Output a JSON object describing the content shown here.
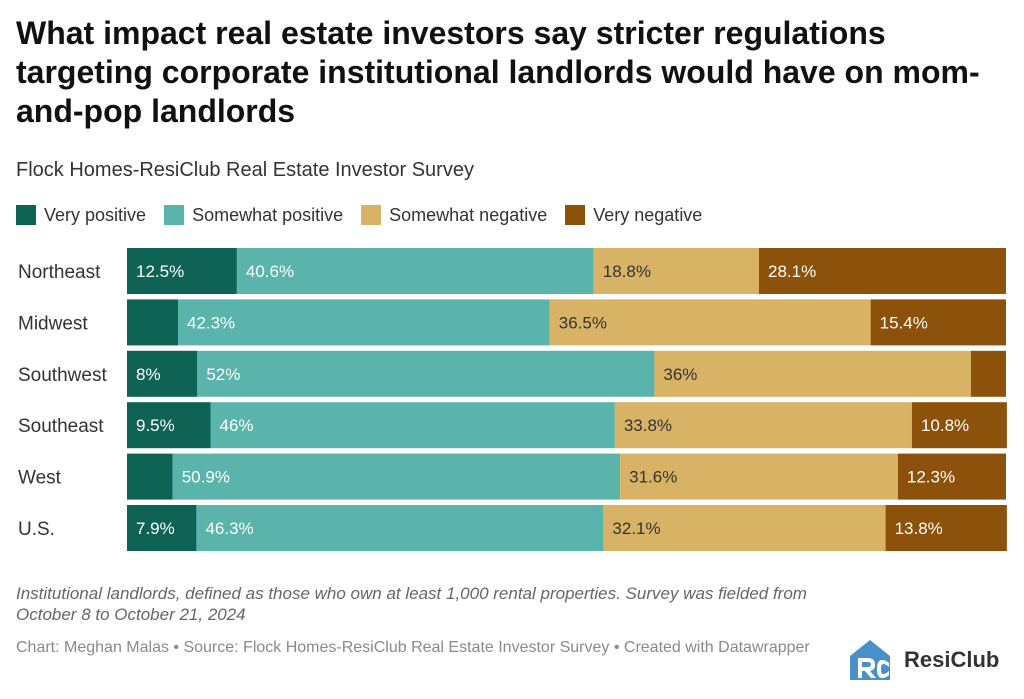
{
  "colors": {
    "very_positive": "#0f6355",
    "somewhat_positive": "#5ab4ac",
    "somewhat_negative": "#d8b365",
    "very_negative": "#8c510a"
  },
  "logo": {
    "text": "ResiClub",
    "icon": "resiclub-logo-icon"
  },
  "chart_data": {
    "type": "bar",
    "orientation": "horizontal",
    "stacked": true,
    "normalized": true,
    "title": "What impact real estate investors say stricter regulations targeting corporate institutional landlords would have on mom-and-pop landlords",
    "subtitle": "Flock Homes-ResiClub Real Estate Investor Survey",
    "legend_position": "top",
    "categories": [
      "Northeast",
      "Midwest",
      "Southwest",
      "Southeast",
      "West",
      "U.S."
    ],
    "series": [
      {
        "name": "Very positive",
        "color": "#0f6355",
        "values": [
          12.5,
          5.8,
          8,
          9.5,
          5.2,
          7.9
        ],
        "labels": [
          "12.5%",
          "",
          "8%",
          "9.5%",
          "",
          "7.9%"
        ]
      },
      {
        "name": "Somewhat positive",
        "color": "#5ab4ac",
        "values": [
          40.6,
          42.3,
          52,
          46,
          50.9,
          46.3
        ],
        "labels": [
          "40.6%",
          "42.3%",
          "52%",
          "46%",
          "50.9%",
          "46.3%"
        ]
      },
      {
        "name": "Somewhat negative",
        "color": "#d8b365",
        "values": [
          18.8,
          36.5,
          36,
          33.8,
          31.6,
          32.1
        ],
        "labels": [
          "18.8%",
          "36.5%",
          "36%",
          "33.8%",
          "31.6%",
          "32.1%"
        ]
      },
      {
        "name": "Very negative",
        "color": "#8c510a",
        "values": [
          28.1,
          15.4,
          4,
          10.8,
          12.3,
          13.8
        ],
        "labels": [
          "28.1%",
          "15.4%",
          "",
          "10.8%",
          "12.3%",
          "13.8%"
        ]
      }
    ],
    "xlim": [
      0,
      100
    ],
    "note": "Institutional landlords, defined as those who own at least 1,000 rental properties. Survey was fielded from October 8 to October 21, 2024",
    "source": "Chart: Meghan Malas • Source: Flock Homes-ResiClub Real Estate Investor Survey • Created with Datawrapper"
  }
}
